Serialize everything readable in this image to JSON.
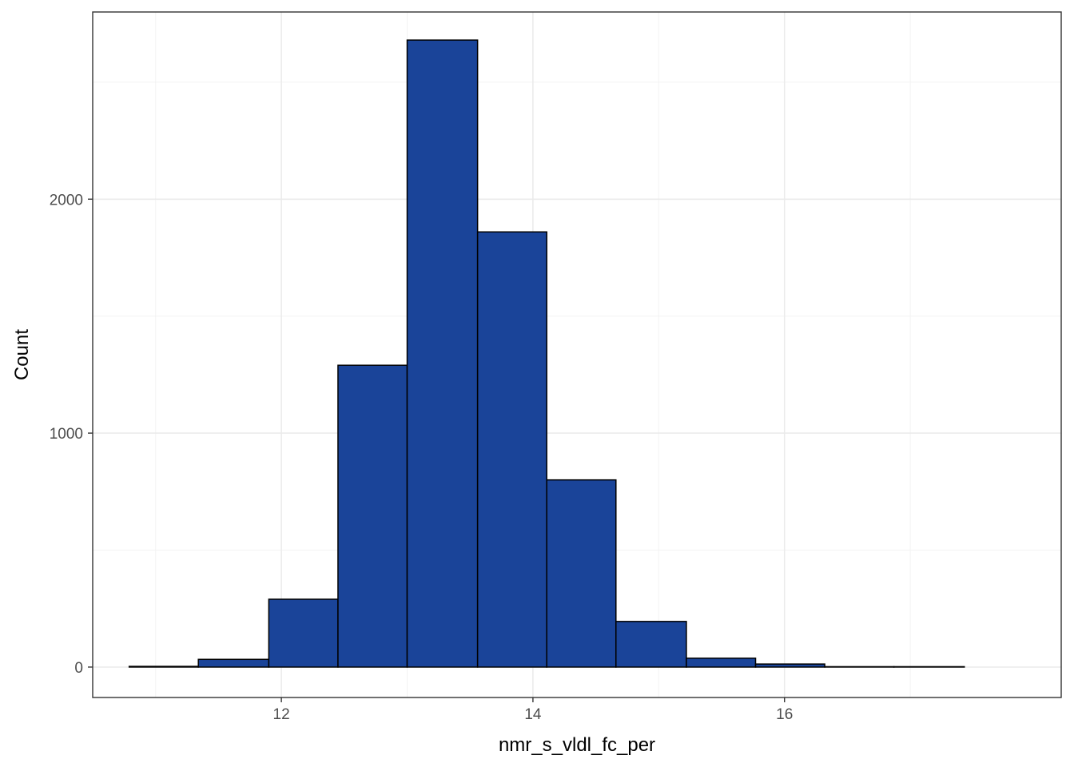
{
  "chart_data": {
    "type": "bar",
    "title": "",
    "xlabel": "nmr_s_vldl_fc_per",
    "ylabel": "Count",
    "xlim": [
      10.5,
      18.2
    ],
    "ylim": [
      -130,
      2800
    ],
    "x_ticks": [
      12,
      14,
      16
    ],
    "x_tick_labels": [
      "12",
      "14",
      "16"
    ],
    "x_minor_ticks": [
      11,
      13,
      15,
      17
    ],
    "y_ticks": [
      0,
      1000,
      2000
    ],
    "y_tick_labels": [
      "0",
      "1000",
      "2000"
    ],
    "y_minor_ticks": [
      500,
      1500,
      2500
    ],
    "grid": true,
    "bin_width": 0.553,
    "bins": [
      {
        "start": 10.79,
        "end": 11.34,
        "count": 3
      },
      {
        "start": 11.34,
        "end": 11.9,
        "count": 33
      },
      {
        "start": 11.9,
        "end": 12.45,
        "count": 290
      },
      {
        "start": 12.45,
        "end": 13.0,
        "count": 1290
      },
      {
        "start": 13.0,
        "end": 13.56,
        "count": 2680
      },
      {
        "start": 13.56,
        "end": 14.11,
        "count": 1860
      },
      {
        "start": 14.11,
        "end": 14.66,
        "count": 800
      },
      {
        "start": 14.66,
        "end": 15.22,
        "count": 195
      },
      {
        "start": 15.22,
        "end": 15.77,
        "count": 38
      },
      {
        "start": 15.77,
        "end": 16.32,
        "count": 13
      },
      {
        "start": 16.32,
        "end": 16.87,
        "count": 1
      },
      {
        "start": 16.87,
        "end": 17.43,
        "count": 1
      }
    ]
  },
  "colors": {
    "bar_fill": "#1a4499",
    "bar_stroke": "#000000",
    "grid_major": "#ebebeb",
    "grid_minor": "#f3f3f3",
    "panel_border": "#333333",
    "tick_text": "#4d4d4d"
  }
}
